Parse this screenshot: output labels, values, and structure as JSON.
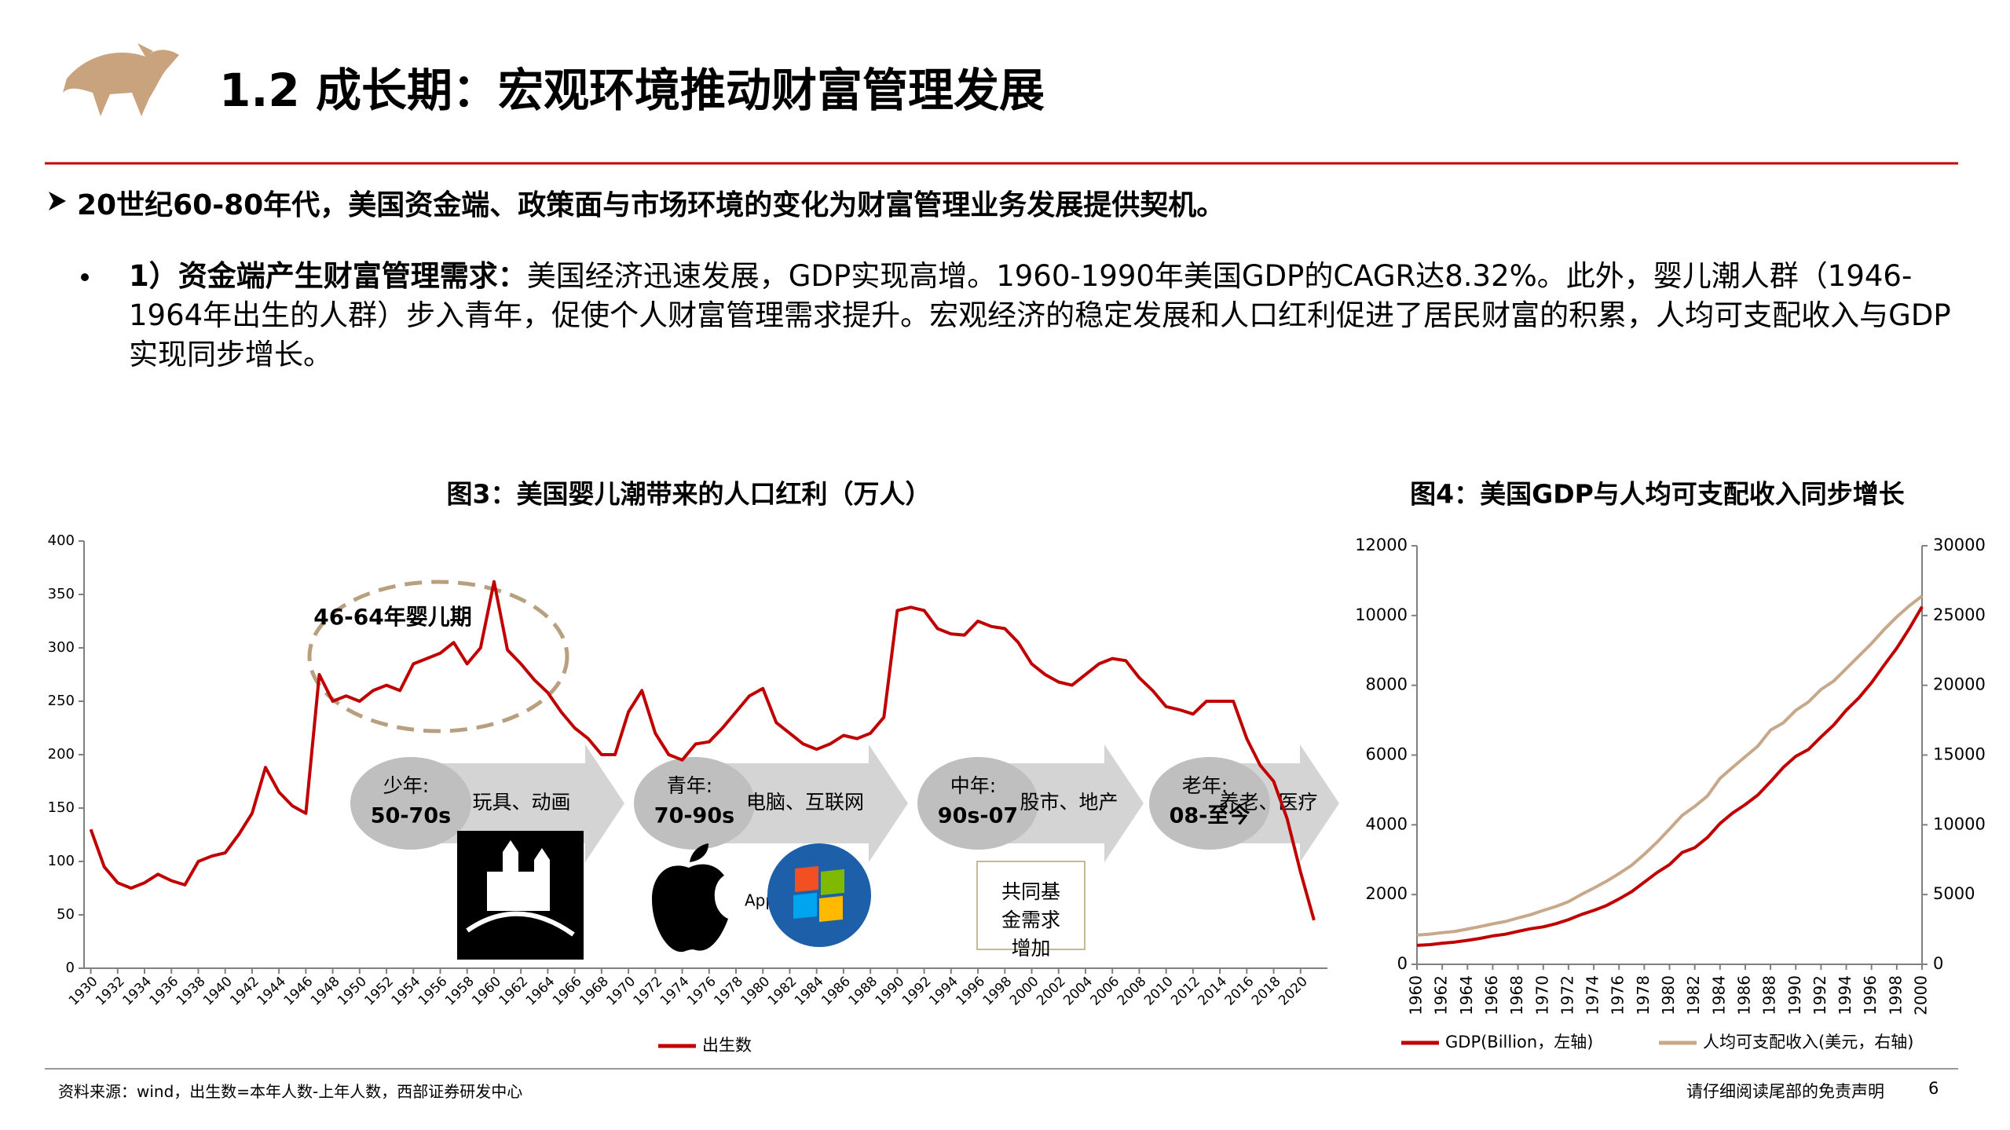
{
  "header": {
    "title": "1.2 成长期：宏观环境推动财富管理发展"
  },
  "bullet": {
    "text": "20世纪60-80年代，美国资金端、政策面与市场环境的变化为财富管理业务发展提供契机。"
  },
  "sub_bullet": {
    "lead": "1）资金端产生财富管理需求：",
    "text": "美国经济迅速发展，GDP实现高增。1960-1990年美国GDP的CAGR达8.32%。此外，婴儿潮人群（1946-1964年出生的人群）步入青年，促使个人财富管理需求提升。宏观经济的稳定发展和人口红利促进了居民财富的积累，人均可支配收入与GDP实现同步增长。"
  },
  "chart_data": [
    {
      "type": "line",
      "title": "图3：美国婴儿潮带来的人口红利（万人）",
      "x": [
        1930,
        1931,
        1932,
        1933,
        1934,
        1935,
        1936,
        1937,
        1938,
        1939,
        1940,
        1941,
        1942,
        1943,
        1944,
        1945,
        1946,
        1947,
        1948,
        1949,
        1950,
        1951,
        1952,
        1953,
        1954,
        1955,
        1956,
        1957,
        1958,
        1959,
        1960,
        1961,
        1962,
        1963,
        1964,
        1965,
        1966,
        1967,
        1968,
        1969,
        1970,
        1971,
        1972,
        1973,
        1974,
        1975,
        1976,
        1977,
        1978,
        1979,
        1980,
        1981,
        1982,
        1983,
        1984,
        1985,
        1986,
        1987,
        1988,
        1989,
        1990,
        1991,
        1992,
        1993,
        1994,
        1995,
        1996,
        1997,
        1998,
        1999,
        2000,
        2001,
        2002,
        2003,
        2004,
        2005,
        2006,
        2007,
        2008,
        2009,
        2010,
        2011,
        2012,
        2013,
        2014,
        2015,
        2016,
        2017,
        2018,
        2019,
        2020,
        2021
      ],
      "series": [
        {
          "name": "出生数",
          "color": "#c00000",
          "values": [
            130,
            95,
            80,
            75,
            80,
            88,
            82,
            78,
            100,
            105,
            108,
            125,
            145,
            188,
            165,
            152,
            145,
            275,
            250,
            255,
            250,
            260,
            265,
            260,
            285,
            290,
            295,
            305,
            285,
            300,
            362,
            298,
            285,
            270,
            258,
            240,
            225,
            215,
            200,
            200,
            240,
            260,
            220,
            200,
            195,
            210,
            212,
            225,
            240,
            255,
            262,
            230,
            220,
            210,
            205,
            210,
            218,
            215,
            220,
            235,
            335,
            338,
            335,
            318,
            313,
            312,
            325,
            320,
            318,
            305,
            285,
            275,
            268,
            265,
            275,
            285,
            290,
            288,
            272,
            260,
            245,
            242,
            238,
            250,
            250,
            250,
            215,
            190,
            175,
            140,
            90,
            45
          ]
        }
      ],
      "xlim": [
        1929.5,
        2022
      ],
      "xticks": [
        1930,
        1932,
        1934,
        1936,
        1938,
        1940,
        1942,
        1944,
        1946,
        1948,
        1950,
        1952,
        1954,
        1956,
        1958,
        1960,
        1962,
        1964,
        1966,
        1968,
        1970,
        1972,
        1974,
        1976,
        1978,
        1980,
        1982,
        1984,
        1986,
        1988,
        1990,
        1992,
        1994,
        1996,
        1998,
        2000,
        2002,
        2004,
        2006,
        2008,
        2010,
        2012,
        2014,
        2016,
        2018,
        2020
      ],
      "ylim": [
        0,
        400
      ],
      "yticks": [
        0,
        50,
        100,
        150,
        200,
        250,
        300,
        350,
        400
      ],
      "annotations": {
        "baby_boom": "46-64年婴儿期",
        "stages": [
          {
            "title": "少年:",
            "period": "50-70s",
            "theme": "玩具、动画"
          },
          {
            "title": "青年:",
            "period": "70-90s",
            "theme": "电脑、互联网"
          },
          {
            "title": "中年:",
            "period": "90s-07",
            "theme": "股市、地产"
          },
          {
            "title": "老年:",
            "period": "08-至今",
            "theme": "养老、医疗"
          }
        ],
        "logo_label": "Apple",
        "note": "共同基金需求增加"
      }
    },
    {
      "type": "line",
      "title": "图4：美国GDP与人均可支配收入同步增长",
      "x": [
        1960,
        1961,
        1962,
        1963,
        1964,
        1965,
        1966,
        1967,
        1968,
        1969,
        1970,
        1971,
        1972,
        1973,
        1974,
        1975,
        1976,
        1977,
        1978,
        1979,
        1980,
        1981,
        1982,
        1983,
        1984,
        1985,
        1986,
        1987,
        1988,
        1989,
        1990,
        1991,
        1992,
        1993,
        1994,
        1995,
        1996,
        1997,
        1998,
        1999,
        2000
      ],
      "series": [
        {
          "name": "GDP(Billion，左轴)",
          "color": "#c00000",
          "values": [
            543,
            563,
            605,
            638,
            686,
            744,
            815,
            862,
            943,
            1019,
            1073,
            1165,
            1280,
            1425,
            1545,
            1684,
            1873,
            2082,
            2352,
            2627,
            2857,
            3207,
            3343,
            3634,
            4037,
            4339,
            4580,
            4855,
            5236,
            5642,
            5963,
            6158,
            6520,
            6859,
            7287,
            7640,
            8073,
            8578,
            9063,
            9631,
            10252
          ]
        },
        {
          "name": "人均可支配收入(美元，右轴)",
          "color": "#c8a88a",
          "axis": "y2",
          "values": [
            2100,
            2160,
            2270,
            2360,
            2530,
            2710,
            2900,
            3070,
            3320,
            3560,
            3860,
            4140,
            4490,
            5000,
            5460,
            5950,
            6500,
            7100,
            7880,
            8740,
            9700,
            10670,
            11320,
            12060,
            13330,
            14120,
            14880,
            15640,
            16790,
            17300,
            18200,
            18800,
            19700,
            20300,
            21200,
            22100,
            23000,
            24000,
            24900,
            25700,
            26400
          ]
        }
      ],
      "xlim": [
        1960,
        2000
      ],
      "xticks": [
        1960,
        1962,
        1964,
        1966,
        1968,
        1970,
        1972,
        1974,
        1976,
        1978,
        1980,
        1982,
        1984,
        1986,
        1988,
        1990,
        1992,
        1994,
        1996,
        1998,
        2000
      ],
      "ylim": [
        0,
        12000
      ],
      "yticks": [
        0,
        2000,
        4000,
        6000,
        8000,
        10000,
        12000
      ],
      "y2lim": [
        0,
        30000
      ],
      "y2ticks": [
        0,
        5000,
        10000,
        15000,
        20000,
        25000,
        30000
      ]
    }
  ],
  "footer": {
    "source": "资料来源：wind，出生数=本年人数-上年人数，西部证券研发中心",
    "disclaimer": "请仔细阅读尾部的免责声明",
    "page": 6
  }
}
